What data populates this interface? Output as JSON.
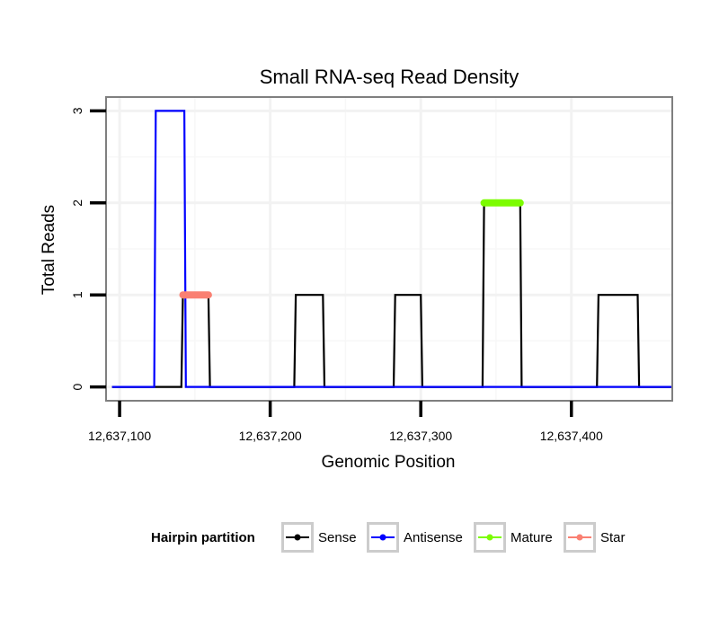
{
  "chart_data": {
    "type": "line",
    "title": "Small RNA-seq Read Density",
    "xlabel": "Genomic Position",
    "ylabel": "Total Reads",
    "xlim": [
      12637091,
      12637467
    ],
    "ylim": [
      -0.15,
      3.15
    ],
    "x_ticks": [
      12637100,
      12637200,
      12637300,
      12637400
    ],
    "x_tick_labels": [
      "12,637,100",
      "12,637,200",
      "12,637,300",
      "12,637,400"
    ],
    "y_ticks": [
      0,
      1,
      2,
      3
    ],
    "y_tick_labels": [
      "0",
      "1",
      "2",
      "3"
    ],
    "grid": true,
    "legend": {
      "title": "Hairpin partition",
      "placement": "bottom",
      "entries": [
        {
          "name": "Sense",
          "color": "#000000"
        },
        {
          "name": "Antisense",
          "color": "#0000ff"
        },
        {
          "name": "Mature",
          "color": "#7cfc00"
        },
        {
          "name": "Star",
          "color": "#fa8072"
        }
      ]
    },
    "series": [
      {
        "name": "Sense",
        "color": "#000000",
        "x": [
          12637095,
          12637141,
          12637142,
          12637159,
          12637160,
          12637216,
          12637217,
          12637235,
          12637236,
          12637282,
          12637283,
          12637300,
          12637301,
          12637341,
          12637342,
          12637366,
          12637367,
          12637417,
          12637418,
          12637444,
          12637445,
          12637467
        ],
        "y": [
          0,
          0,
          1,
          1,
          0,
          0,
          1,
          1,
          0,
          0,
          1,
          1,
          0,
          0,
          2,
          2,
          0,
          0,
          1,
          1,
          0,
          0
        ]
      },
      {
        "name": "Antisense",
        "color": "#0000ff",
        "x": [
          12637095,
          12637123,
          12637124,
          12637143,
          12637144,
          12637467
        ],
        "y": [
          0,
          0,
          3,
          3,
          0,
          0
        ]
      },
      {
        "name": "Mature",
        "color": "#7cfc00",
        "x": [
          12637342,
          12637366
        ],
        "y": [
          2,
          2
        ]
      },
      {
        "name": "Star",
        "color": "#fa8072",
        "x": [
          12637142,
          12637159
        ],
        "y": [
          1,
          1
        ]
      }
    ]
  }
}
